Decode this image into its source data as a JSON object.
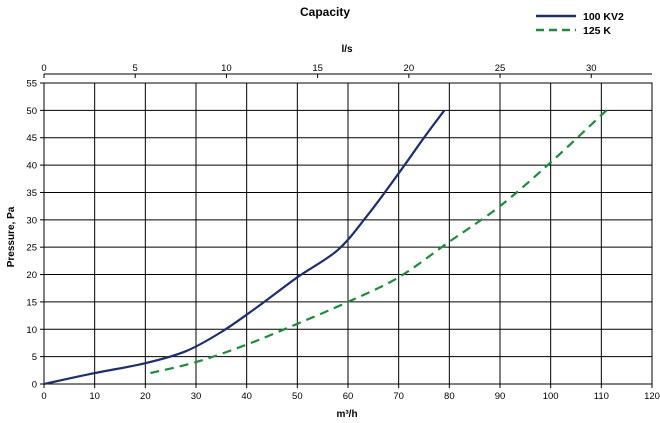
{
  "chart_data": {
    "type": "line",
    "title": "Capacity",
    "xlabel": "m³/h",
    "ylabel": "Pressure, Pa",
    "x2label": "l/s",
    "xlim": [
      0,
      120
    ],
    "ylim": [
      0,
      55
    ],
    "x2lim": [
      0,
      33.33
    ],
    "xticks": [
      0,
      10,
      20,
      30,
      40,
      50,
      60,
      70,
      80,
      90,
      100,
      110,
      120
    ],
    "yticks": [
      0,
      5,
      10,
      15,
      20,
      25,
      30,
      35,
      40,
      45,
      50,
      55
    ],
    "x2ticks": [
      0,
      5,
      10,
      15,
      20,
      25,
      30
    ],
    "grid": true,
    "legend_position": "top-right",
    "series": [
      {
        "name": "100 KV2",
        "color": "#1f2f6b",
        "dash": "solid",
        "x": [
          0,
          10,
          20,
          28,
          35,
          42,
          50,
          58,
          64,
          70,
          75,
          79
        ],
        "y": [
          0,
          2,
          3.8,
          6,
          9.5,
          14,
          19.5,
          24.5,
          31,
          38.5,
          45,
          50
        ]
      },
      {
        "name": "125 K",
        "color": "#1e8a3c",
        "dash": "dashed",
        "x": [
          21,
          30,
          40,
          50,
          60,
          70,
          80,
          90,
          100,
          111
        ],
        "y": [
          2,
          4,
          7.2,
          11,
          15,
          19.5,
          26,
          32.5,
          40.5,
          50
        ]
      }
    ]
  }
}
